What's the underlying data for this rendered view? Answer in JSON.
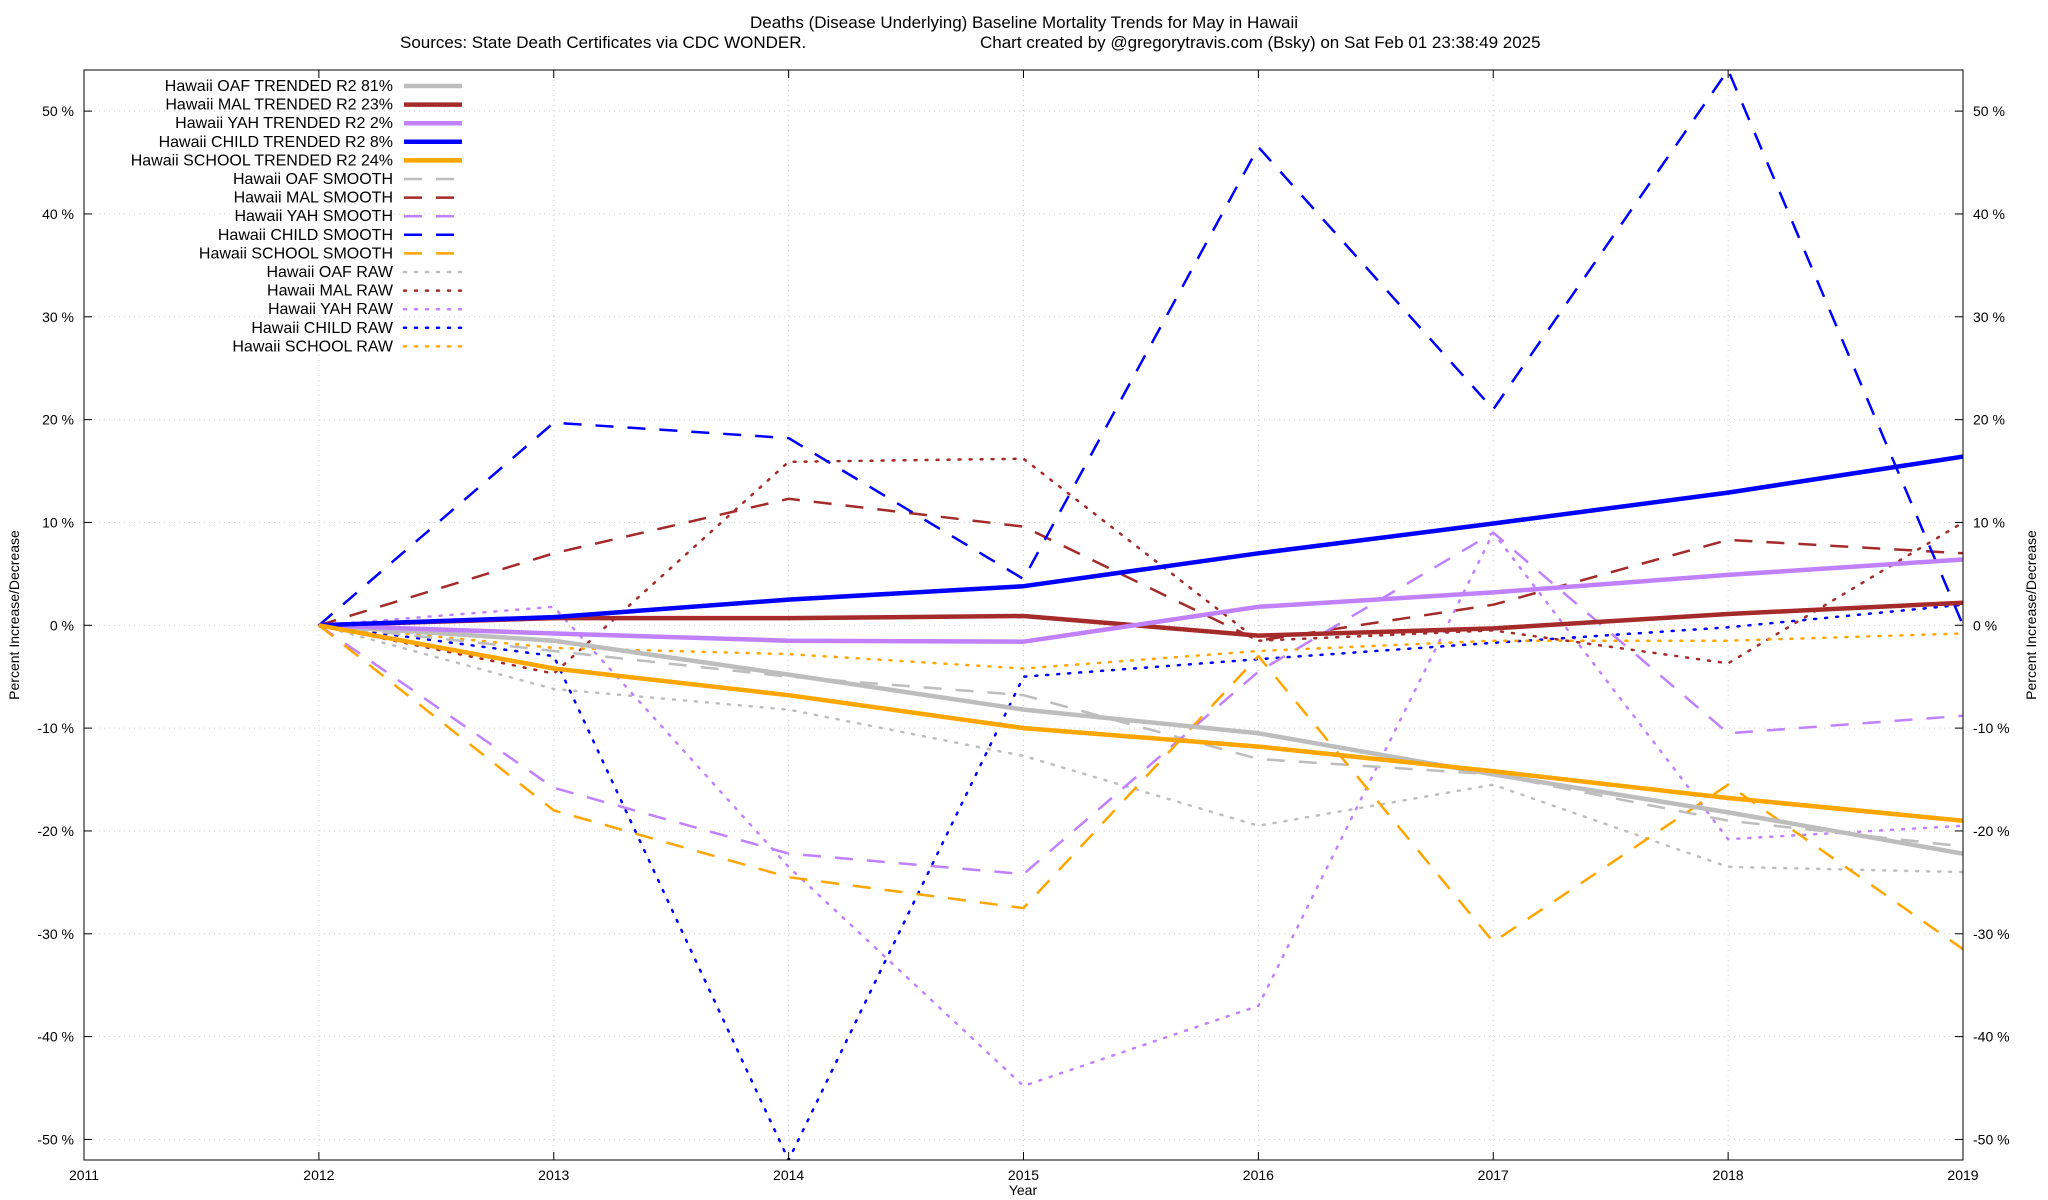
{
  "chart_data": {
    "type": "line",
    "title": "Deaths (Disease Underlying)  Baseline Mortality Trends for May in Hawaii",
    "subtitle_left": "Sources: State Death Certificates via CDC WONDER.",
    "subtitle_right": "Chart created by @gregorytravis.com (Bsky) on Sat Feb 01 23:38:49 2025",
    "xlabel": "Year",
    "ylabel": "Percent Increase/Decrease",
    "y2label": "Percent Increase/Decrease",
    "xlim": [
      2011,
      2019
    ],
    "ylim": [
      -52,
      54
    ],
    "x_ticks": [
      "2011",
      "2012",
      "2013",
      "2014",
      "2015",
      "2016",
      "2017",
      "2018",
      "2019"
    ],
    "y_ticks": [
      {
        "value": 50,
        "label": "50 %"
      },
      {
        "value": 40,
        "label": "40 %"
      },
      {
        "value": 30,
        "label": "30 %"
      },
      {
        "value": 20,
        "label": "20 %"
      },
      {
        "value": 10,
        "label": "10 %"
      },
      {
        "value": 0,
        "label": "0 %"
      },
      {
        "value": -10,
        "label": "-10 %"
      },
      {
        "value": -20,
        "label": "-20 %"
      },
      {
        "value": -30,
        "label": "-30 %"
      },
      {
        "value": -40,
        "label": "-40 %"
      },
      {
        "value": -50,
        "label": "-50 %"
      }
    ],
    "grid": true,
    "legend_position": "top-left",
    "x": [
      2012,
      2013,
      2014,
      2015,
      2016,
      2017,
      2018,
      2019
    ],
    "series": [
      {
        "name": "Hawaii OAF TRENDED R2  81%",
        "style": "solid",
        "color": "#bdbdbd",
        "values": [
          0,
          -1.5,
          -4.8,
          -8.2,
          -10.5,
          -14.5,
          -18.2,
          -22.2
        ]
      },
      {
        "name": "Hawaii MAL TRENDED R2  23%",
        "style": "solid",
        "color": "#a52a2a",
        "values": [
          0,
          0.7,
          0.7,
          0.9,
          -1.0,
          -0.3,
          1.1,
          2.2
        ]
      },
      {
        "name": "Hawaii YAH TRENDED R2   2%",
        "style": "solid",
        "color": "#c080ff",
        "values": [
          0,
          -0.8,
          -1.5,
          -1.6,
          1.8,
          3.2,
          4.9,
          6.4
        ]
      },
      {
        "name": "Hawaii CHILD TRENDED R2   8%",
        "style": "solid",
        "color": "#0000ff",
        "values": [
          0,
          0.8,
          2.5,
          3.8,
          7.0,
          9.9,
          12.9,
          16.4
        ]
      },
      {
        "name": "Hawaii SCHOOL TRENDED R2  24%",
        "style": "solid",
        "color": "#ffa500",
        "values": [
          0,
          -4.2,
          -6.8,
          -10.0,
          -11.8,
          -14.2,
          -16.8,
          -19.0
        ]
      },
      {
        "name": "Hawaii OAF SMOOTH",
        "style": "dashed",
        "color": "#bdbdbd",
        "values": [
          0,
          -2.5,
          -5.0,
          -6.8,
          -13.0,
          -14.5,
          -19.0,
          -21.5
        ]
      },
      {
        "name": "Hawaii MAL SMOOTH",
        "style": "dashed",
        "color": "#a52a2a",
        "values": [
          0,
          7.0,
          12.3,
          9.6,
          -1.5,
          2.0,
          8.3,
          7.0
        ]
      },
      {
        "name": "Hawaii YAH SMOOTH",
        "style": "dashed",
        "color": "#c080ff",
        "values": [
          0,
          -15.8,
          -22.2,
          -24.2,
          -4.5,
          9.0,
          -10.5,
          -8.8
        ]
      },
      {
        "name": "Hawaii CHILD SMOOTH",
        "style": "dashed",
        "color": "#0000ff",
        "values": [
          0,
          19.7,
          18.2,
          4.5,
          46.5,
          21.0,
          54.0,
          0
        ]
      },
      {
        "name": "Hawaii SCHOOL SMOOTH",
        "style": "dashed",
        "color": "#ffa500",
        "values": [
          0,
          -18.0,
          -24.5,
          -27.5,
          -3.0,
          -30.8,
          -15.5,
          -31.5
        ]
      },
      {
        "name": "Hawaii OAF RAW",
        "style": "dotted",
        "color": "#bdbdbd",
        "values": [
          0,
          -6.2,
          -8.2,
          -12.7,
          -19.5,
          -15.5,
          -23.5,
          -24.0
        ]
      },
      {
        "name": "Hawaii MAL RAW",
        "style": "dotted",
        "color": "#a52a2a",
        "values": [
          0,
          -4.7,
          15.9,
          16.2,
          -1.5,
          -0.5,
          -3.7,
          10.0
        ]
      },
      {
        "name": "Hawaii YAH RAW",
        "style": "dotted",
        "color": "#c080ff",
        "values": [
          0,
          1.8,
          -23.5,
          -44.8,
          -37.0,
          9.0,
          -20.8,
          -19.5
        ]
      },
      {
        "name": "Hawaii CHILD RAW",
        "style": "dotted",
        "color": "#0000ff",
        "values": [
          0,
          -3.0,
          -52.0,
          -5.0,
          -3.3,
          -1.7,
          -0.2,
          2.0
        ]
      },
      {
        "name": "Hawaii SCHOOL RAW",
        "style": "dotted",
        "color": "#ffa500",
        "values": [
          0,
          -2.2,
          -2.8,
          -4.2,
          -2.5,
          -1.5,
          -1.5,
          -0.8
        ]
      }
    ]
  }
}
